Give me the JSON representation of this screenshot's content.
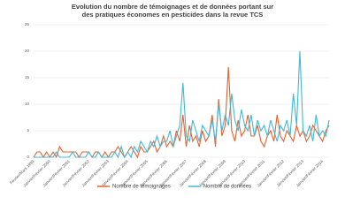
{
  "chart_data": {
    "type": "line",
    "title": "Evolution du nombre de témoignages et de données portant sur des pratiques économes en pesticides dans la revue TCS",
    "categories": [
      "Février/Mars 1999",
      null,
      null,
      null,
      null,
      "Janvier/Février 2000",
      null,
      null,
      null,
      null,
      null,
      "Janvier/Février 2001",
      null,
      null,
      null,
      null,
      null,
      "Janvier/Février 2002",
      null,
      null,
      null,
      null,
      null,
      "Janvier/Février 2003",
      null,
      null,
      null,
      null,
      null,
      "Janvier/Février 2004",
      null,
      null,
      null,
      null,
      null,
      "Janvier/Février 2005",
      null,
      null,
      null,
      null,
      null,
      "Janvier/Février 2006",
      null,
      null,
      null,
      null,
      null,
      "Janvier/Février 2007",
      null,
      null,
      null,
      null,
      null,
      "Janvier/Février 2008",
      null,
      null,
      null,
      null,
      null,
      "Janvier/Février 2009",
      null,
      null,
      null,
      null,
      null,
      "Janvier/Février 2010",
      null,
      null,
      null,
      null,
      null,
      "Janvier/Février 2011",
      null,
      null,
      null,
      null,
      null,
      "Janvier/Février 2012",
      null,
      null,
      null,
      null,
      null,
      "Janvier/Février 2013",
      null,
      null,
      null,
      null,
      null,
      "Janvier/Février 2014",
      null,
      null
    ],
    "series": [
      {
        "name": "Nombre de témoignages",
        "color": "#e8602c",
        "values": [
          0,
          1,
          1,
          0,
          1,
          0,
          1,
          0,
          2,
          1,
          1,
          1,
          1,
          1,
          0,
          1,
          1,
          1,
          0,
          1,
          1,
          0,
          1,
          0,
          1,
          1,
          2,
          1,
          0,
          1,
          2,
          1,
          0,
          2,
          1,
          1,
          2,
          3,
          1,
          2,
          4,
          2,
          3,
          2,
          5,
          3,
          8,
          2,
          6,
          3,
          4,
          2,
          5,
          3,
          4,
          8,
          2,
          11,
          4,
          6,
          17,
          5,
          3,
          7,
          4,
          5,
          8,
          4,
          4,
          6,
          3,
          2,
          4,
          5,
          3,
          8,
          4,
          3,
          5,
          4,
          3,
          6,
          4,
          5,
          3,
          4,
          6,
          5,
          4,
          3,
          5,
          6
        ]
      },
      {
        "name": "Nombre de données",
        "color": "#3fb8d8",
        "values": [
          0,
          0,
          0,
          0,
          0,
          0,
          0,
          1,
          0,
          0,
          0,
          0,
          1,
          0,
          0,
          0,
          0,
          1,
          0,
          0,
          1,
          0,
          0,
          0,
          0,
          1,
          0,
          2,
          0,
          1,
          0,
          2,
          1,
          3,
          2,
          1,
          3,
          2,
          4,
          2,
          3,
          3,
          5,
          2,
          4,
          6,
          14,
          4,
          3,
          7,
          5,
          3,
          6,
          5,
          4,
          7,
          3,
          10,
          5,
          8,
          6,
          12,
          7,
          5,
          9,
          6,
          5,
          8,
          4,
          7,
          5,
          6,
          4,
          7,
          5,
          3,
          6,
          5,
          7,
          4,
          12,
          6,
          20,
          5,
          4,
          6,
          3,
          8,
          4,
          5,
          4,
          7
        ]
      }
    ],
    "ylim": [
      0,
      25
    ],
    "yticks": [
      0,
      5,
      10,
      15,
      20,
      25
    ],
    "grid": true,
    "legend": "bottom"
  }
}
